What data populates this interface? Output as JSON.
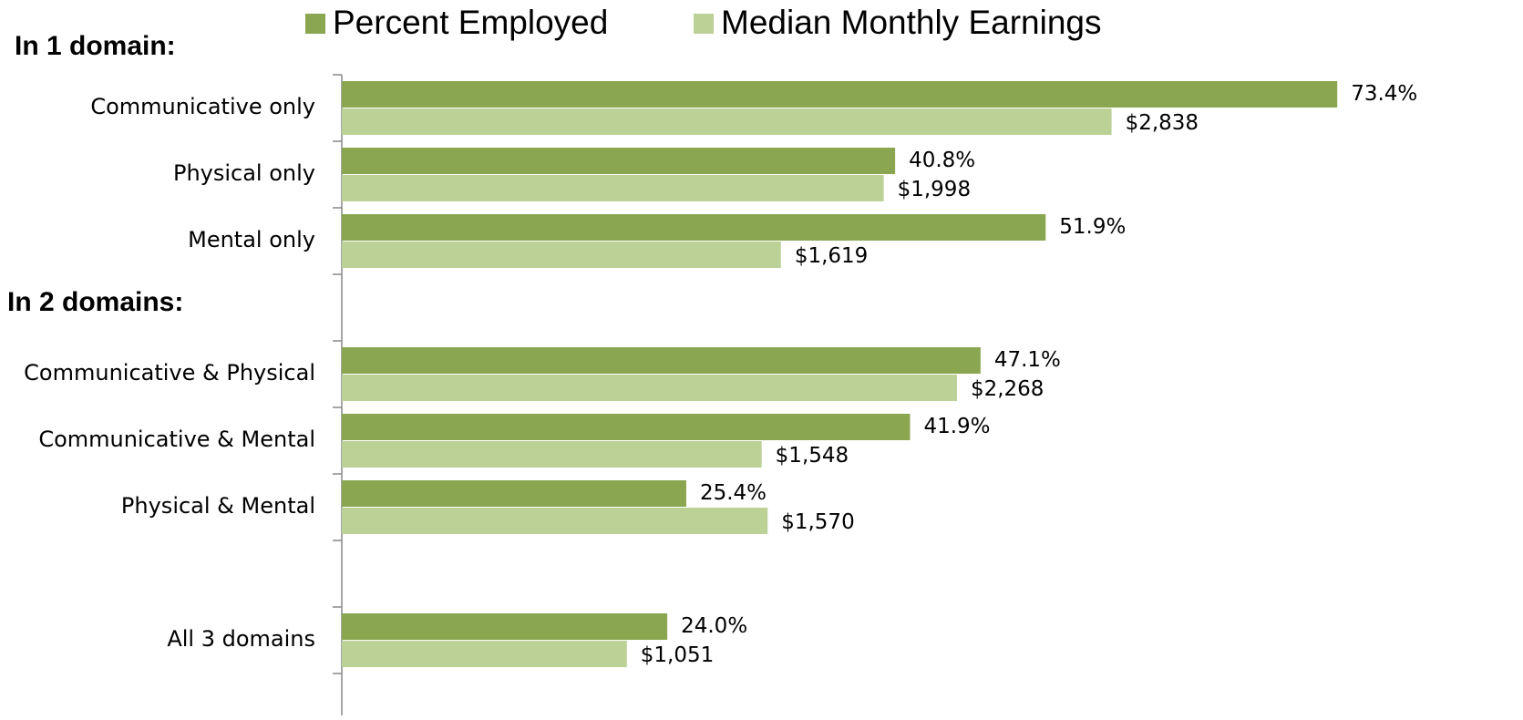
{
  "chart_data": {
    "type": "bar",
    "orientation": "horizontal",
    "annotations": [
      "In 1 domain:",
      "In 2 domains:"
    ],
    "categories": [
      "Communicative only",
      "Physical only",
      "Mental only",
      null,
      "Communicative & Physical",
      "Communicative & Mental",
      "Physical & Mental",
      null,
      "All 3 domains"
    ],
    "series": [
      {
        "name": "Percent Employed",
        "color": "#8aa650",
        "axis": "x",
        "values": [
          73.4,
          40.8,
          51.9,
          null,
          47.1,
          41.9,
          25.4,
          null,
          24.0
        ],
        "value_labels": [
          "73.4%",
          "40.8%",
          "51.9%",
          null,
          "47.1%",
          "41.9%",
          "25.4%",
          null,
          "24.0%"
        ]
      },
      {
        "name": "Median Monthly Earnings",
        "color": "#bcd196",
        "axis": "x2",
        "values": [
          2838,
          1998,
          1619,
          null,
          2268,
          1548,
          1570,
          null,
          1051
        ],
        "value_labels": [
          "$2,838",
          "$1,998",
          "$1,619",
          null,
          "$2,268",
          "$1,548",
          "$1,570",
          null,
          "$1,051"
        ]
      }
    ],
    "xlim": [
      0,
      100
    ],
    "x2lim": [
      0,
      5000
    ],
    "legend": "top"
  }
}
